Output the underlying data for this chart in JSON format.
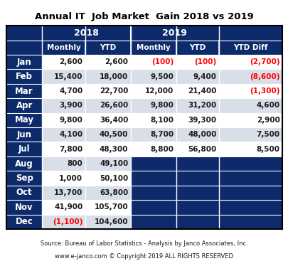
{
  "title": "Annual IT  Job Market  Gain 2018 vs 2019",
  "footer1": "Source: Bureau of Labor Statistics - Analysis by Janco Associates, Inc.",
  "footer2": "www.e-janco.com © Copyright 2019 ALL RIGHTS RESERVED",
  "header_bg": "#0d2a6b",
  "row_colors": [
    "#ffffff",
    "#d9dfe8"
  ],
  "dark_bg": "#0d2a6b",
  "red_text": "#ff0000",
  "black_text": "#1a1a1a",
  "outer_border": "#000000",
  "months": [
    "Jan",
    "Feb",
    "Mar",
    "Apr",
    "May",
    "Jun",
    "Jul",
    "Aug",
    "Sep",
    "Oct",
    "Nov",
    "Dec"
  ],
  "col2018_monthly": [
    "2,600",
    "15,400",
    "4,700",
    "3,900",
    "9,800",
    "4,100",
    "7,800",
    "800",
    "1,000",
    "13,700",
    "41,900",
    "(1,100)"
  ],
  "col2018_ytd": [
    "2,600",
    "18,000",
    "22,700",
    "26,600",
    "36,400",
    "40,500",
    "48,300",
    "49,100",
    "50,100",
    "63,800",
    "105,700",
    "104,600"
  ],
  "col2019_monthly": [
    "(100)",
    "9,500",
    "12,000",
    "9,800",
    "8,100",
    "8,700",
    "8,800",
    "",
    "",
    "",
    "",
    ""
  ],
  "col2019_ytd": [
    "(100)",
    "9,400",
    "21,400",
    "31,200",
    "39,300",
    "48,000",
    "56,800",
    "",
    "",
    "",
    "",
    ""
  ],
  "col_ytd_diff": [
    "(2,700)",
    "(8,600)",
    "(1,300)",
    "4,600",
    "2,900",
    "7,500",
    "8,500",
    "",
    "",
    "",
    "",
    ""
  ],
  "col2018_monthly_red": [
    false,
    false,
    false,
    false,
    false,
    false,
    false,
    false,
    false,
    false,
    false,
    true
  ],
  "col2019_monthly_red": [
    true,
    false,
    false,
    false,
    false,
    false,
    false,
    false,
    false,
    false,
    false,
    false
  ],
  "col2019_ytd_red": [
    true,
    false,
    false,
    false,
    false,
    false,
    false,
    false,
    false,
    false,
    false,
    false
  ],
  "col_ytd_diff_red": [
    true,
    true,
    true,
    false,
    false,
    false,
    false,
    false,
    false,
    false,
    false,
    false
  ],
  "n_data_with_2019": 7,
  "figwidth": 4.06,
  "figheight": 3.81,
  "dpi": 100
}
